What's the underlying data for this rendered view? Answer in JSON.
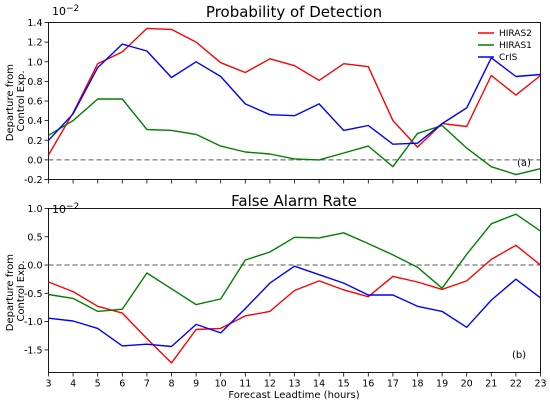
{
  "chart_data": [
    {
      "type": "line",
      "title": "Probability of Detection",
      "ylabel": "Departure from Control Exp.",
      "scale": "10^-2",
      "x": [
        3,
        4,
        5,
        6,
        7,
        8,
        9,
        10,
        11,
        12,
        13,
        14,
        15,
        16,
        17,
        18,
        19,
        20,
        21,
        22,
        23
      ],
      "ylim": [
        -0.2,
        1.4
      ],
      "yticks": [
        -0.2,
        0.0,
        0.2,
        0.4,
        0.6,
        0.8,
        1.0,
        1.2,
        1.4
      ],
      "ytick_labels": [
        "-0.2",
        "0.0",
        "0.2",
        "0.4",
        "0.6",
        "0.8",
        "1.0",
        "1.2",
        "1.4"
      ],
      "panel_label": "(a)",
      "legend": "top-right",
      "series": [
        {
          "name": "HIRAS2",
          "color": "#ff0000",
          "values": [
            0.05,
            0.48,
            0.98,
            1.1,
            1.34,
            1.33,
            1.2,
            0.99,
            0.89,
            1.03,
            0.96,
            0.81,
            0.98,
            0.95,
            0.4,
            0.13,
            0.37,
            0.34,
            0.86,
            0.66,
            0.86
          ]
        },
        {
          "name": "HIRAS1",
          "color": "#008000",
          "values": [
            0.25,
            0.4,
            0.62,
            0.62,
            0.31,
            0.3,
            0.26,
            0.14,
            0.08,
            0.06,
            0.01,
            0.0,
            0.07,
            0.14,
            -0.07,
            0.27,
            0.35,
            0.12,
            -0.07,
            -0.15,
            -0.09
          ]
        },
        {
          "name": "CrIS",
          "color": "#0000ff",
          "values": [
            0.2,
            0.47,
            0.94,
            1.18,
            1.11,
            0.84,
            1.0,
            0.85,
            0.57,
            0.46,
            0.45,
            0.57,
            0.3,
            0.35,
            0.16,
            0.17,
            0.37,
            0.53,
            1.04,
            0.85,
            0.87
          ]
        }
      ]
    },
    {
      "type": "line",
      "title": "False Alarm Rate",
      "xlabel": "Forecast Leadtime (hours)",
      "ylabel": "Departure from Control Exp.",
      "scale": "10^-2",
      "x": [
        3,
        4,
        5,
        6,
        7,
        8,
        9,
        10,
        11,
        12,
        13,
        14,
        15,
        16,
        17,
        18,
        19,
        20,
        21,
        22,
        23
      ],
      "xtick_labels": [
        "3",
        "4",
        "5",
        "6",
        "7",
        "8",
        "9",
        "10",
        "11",
        "12",
        "13",
        "14",
        "15",
        "16",
        "17",
        "18",
        "19",
        "20",
        "21",
        "22",
        "23"
      ],
      "ylim": [
        -1.9,
        1.0
      ],
      "yticks": [
        -1.5,
        -1.0,
        -0.5,
        0.0,
        0.5,
        1.0
      ],
      "ytick_labels": [
        "-1.5",
        "-1.0",
        "-0.5",
        "0.0",
        "0.5",
        "1.0"
      ],
      "panel_label": "(b)",
      "series": [
        {
          "name": "HIRAS2",
          "color": "#ff0000",
          "values": [
            -0.3,
            -0.47,
            -0.73,
            -0.85,
            -1.3,
            -1.73,
            -1.14,
            -1.12,
            -0.9,
            -0.82,
            -0.45,
            -0.28,
            -0.44,
            -0.56,
            -0.2,
            -0.3,
            -0.43,
            -0.28,
            0.1,
            0.35,
            0.0
          ]
        },
        {
          "name": "HIRAS1",
          "color": "#008000",
          "values": [
            -0.52,
            -0.59,
            -0.82,
            -0.78,
            -0.14,
            -0.42,
            -0.7,
            -0.6,
            0.09,
            0.23,
            0.49,
            0.48,
            0.57,
            0.38,
            0.18,
            -0.04,
            -0.41,
            0.19,
            0.73,
            0.9,
            0.6
          ]
        },
        {
          "name": "CrIS",
          "color": "#0000ff",
          "values": [
            -0.94,
            -0.99,
            -1.12,
            -1.43,
            -1.4,
            -1.44,
            -1.05,
            -1.2,
            -0.77,
            -0.32,
            -0.02,
            -0.17,
            -0.32,
            -0.53,
            -0.53,
            -0.73,
            -0.82,
            -1.1,
            -0.62,
            -0.25,
            -0.58
          ]
        }
      ]
    }
  ]
}
